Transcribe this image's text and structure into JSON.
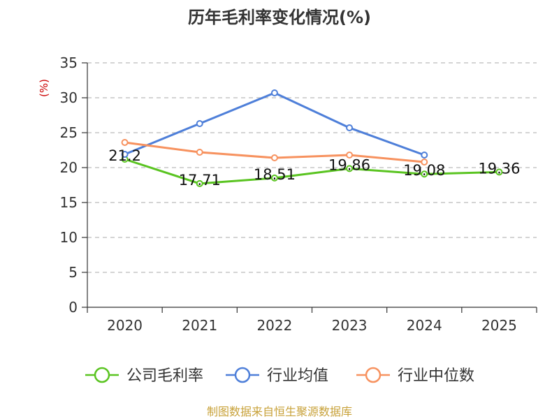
{
  "chart_data": {
    "type": "line",
    "title": "历年毛利率变化情况(%)",
    "ylabel": "(%)",
    "xlabel": "",
    "categories": [
      "2020",
      "2021",
      "2022",
      "2023",
      "2024",
      "2025"
    ],
    "ylim": [
      0,
      35
    ],
    "yticks": [
      0,
      5,
      10,
      15,
      20,
      25,
      30,
      35
    ],
    "grid": true,
    "legend_position": "bottom",
    "series": [
      {
        "name": "公司毛利率",
        "color": "#5ac421",
        "values": [
          21.2,
          17.71,
          18.51,
          19.86,
          19.08,
          19.36
        ],
        "labels": [
          "21.2",
          "17.71",
          "18.51",
          "19.86",
          "19.08",
          "19.36"
        ]
      },
      {
        "name": "行业均值",
        "color": "#4e7fd9",
        "values": [
          21.9,
          26.3,
          30.7,
          25.7,
          21.8,
          null
        ],
        "labels": []
      },
      {
        "name": "行业中位数",
        "color": "#f7925f",
        "values": [
          23.6,
          22.2,
          21.4,
          21.8,
          20.8,
          null
        ],
        "labels": []
      }
    ],
    "source": "制图数据来自恒生聚源数据库"
  },
  "colors": {
    "axis": "#333333",
    "grid": "#bbbbbb",
    "ylabel": "#cc0000",
    "source": "#c8a23a"
  }
}
